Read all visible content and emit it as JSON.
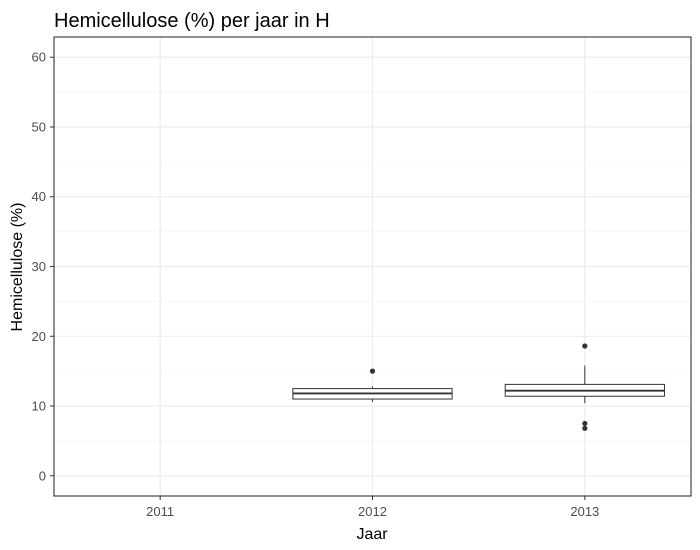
{
  "chart_data": {
    "type": "boxplot",
    "title": "Hemicellulose (%) per jaar in H",
    "xlabel": "Jaar",
    "ylabel": "Hemicellulose (%)",
    "categories": [
      "2011",
      "2012",
      "2013"
    ],
    "ylim": [
      -2.9,
      62.9
    ],
    "yticks": [
      0,
      10,
      20,
      30,
      40,
      50,
      60
    ],
    "grid": true,
    "boxes": [
      {
        "category": "2011",
        "present": false
      },
      {
        "category": "2012",
        "present": true,
        "whisker_low": 10.6,
        "q1": 11.0,
        "median": 11.8,
        "q3": 12.5,
        "whisker_high": 12.8,
        "outliers": [
          15.0
        ]
      },
      {
        "category": "2013",
        "present": true,
        "whisker_low": 10.4,
        "q1": 11.4,
        "median": 12.2,
        "q3": 13.1,
        "whisker_high": 15.8,
        "outliers": [
          18.6,
          7.5,
          6.8
        ]
      }
    ]
  }
}
